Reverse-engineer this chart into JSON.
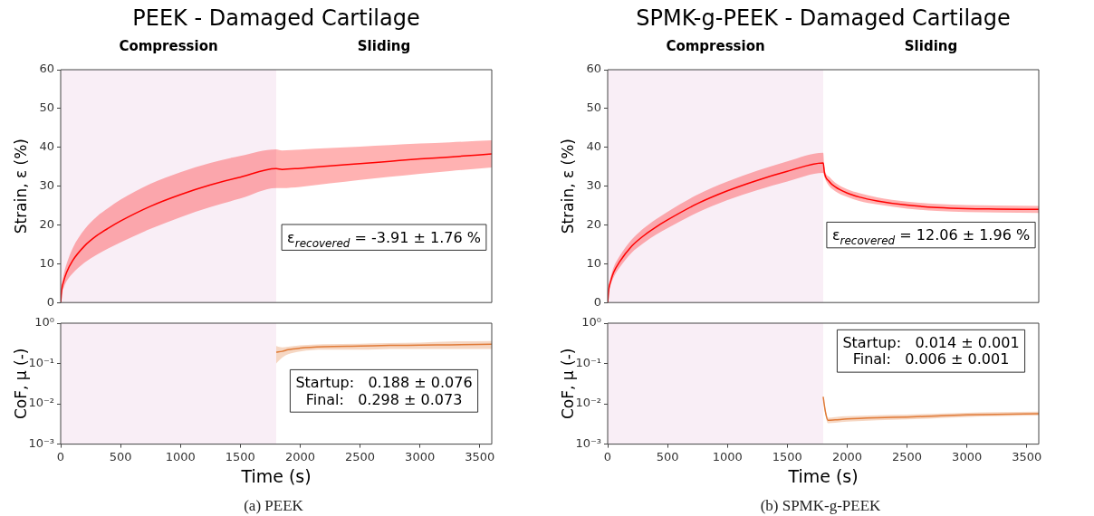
{
  "chart_data": [
    {
      "type": "line",
      "title": "PEEK - Damaged Cartilage",
      "ylabel": "Strain, ε (%)",
      "xlim": [
        0,
        3600
      ],
      "ylim": [
        0,
        60
      ],
      "yticks": [
        0,
        10,
        20,
        30,
        40,
        50,
        60
      ],
      "tick_labels": "y",
      "grid": false,
      "bands": [
        {
          "axis": "x",
          "from": 0,
          "to": 1800,
          "label": "Compression",
          "color": "#f9eef6"
        }
      ],
      "annotations": [
        "Sliding",
        "ε$_{recovered}$ = -3.91 ± 1.76 %"
      ],
      "series": [
        {
          "color": "#ff0000",
          "x": [
            0,
            10,
            25,
            50,
            100,
            200,
            300,
            400,
            500,
            750,
            1000,
            1250,
            1500,
            1800,
            1850,
            2000,
            2250,
            2500,
            2750,
            3000,
            3250,
            3600
          ],
          "values": [
            0,
            3.5,
            5.5,
            7.8,
            10.8,
            14.6,
            17.2,
            19.2,
            21,
            24.8,
            27.8,
            30.3,
            32.3,
            34.5,
            34.3,
            34.6,
            35.2,
            35.8,
            36.4,
            37,
            37.5,
            38.3
          ],
          "lower": [
            0,
            2.5,
            3.8,
            5.5,
            7.5,
            10.3,
            12.3,
            14,
            15.5,
            19,
            22,
            24.6,
            26.8,
            29.5,
            29.5,
            29.8,
            30.7,
            31.6,
            32.4,
            33.2,
            33.9,
            34.8
          ],
          "upper": [
            0,
            4.5,
            7.2,
            10,
            14,
            18.9,
            22.1,
            24.4,
            26.5,
            30.6,
            33.6,
            36,
            37.8,
            39.5,
            39.2,
            39.4,
            39.8,
            40.2,
            40.6,
            41,
            41.3,
            41.8
          ]
        }
      ]
    },
    {
      "type": "line",
      "xlabel": "Time (s)",
      "ylabel": "CoF, μ (-)",
      "log": "y",
      "xlim": [
        0,
        3600
      ],
      "xticks": [
        0,
        500,
        1000,
        1500,
        2000,
        2500,
        3000,
        3500
      ],
      "ylim": [
        0.001,
        1
      ],
      "yticks": [
        {
          "value": 0.001,
          "label": "10⁻³"
        },
        {
          "value": 0.01,
          "label": "10⁻²"
        },
        {
          "value": 0.1,
          "label": "10⁻¹"
        },
        {
          "value": 1,
          "label": "10⁰"
        }
      ],
      "grid": false,
      "bands": [
        {
          "axis": "x",
          "from": 0,
          "to": 1800,
          "color": "#f9eef6"
        }
      ],
      "annotations": [
        "Startup:   0.188 ± 0.076\nFinal:   0.298 ± 0.073",
        "(a) PEEK"
      ],
      "series": [
        {
          "color": "#e07b39",
          "x": [
            1800,
            1850,
            1900,
            2000,
            2200,
            2500,
            2750,
            3000,
            3250,
            3600
          ],
          "values": [
            0.19,
            0.2,
            0.22,
            0.24,
            0.26,
            0.27,
            0.28,
            0.285,
            0.29,
            0.3
          ],
          "lower": [
            0.1,
            0.14,
            0.17,
            0.2,
            0.22,
            0.22,
            0.23,
            0.23,
            0.23,
            0.23
          ],
          "upper": [
            0.27,
            0.25,
            0.26,
            0.28,
            0.3,
            0.31,
            0.32,
            0.33,
            0.35,
            0.36
          ]
        }
      ]
    },
    {
      "type": "line",
      "title": "SPMK-g-PEEK - Damaged Cartilage",
      "ylabel": "Strain, ε (%)",
      "xlim": [
        0,
        3600
      ],
      "ylim": [
        0,
        60
      ],
      "yticks": [
        0,
        10,
        20,
        30,
        40,
        50,
        60
      ],
      "tick_labels": "y",
      "grid": false,
      "bands": [
        {
          "axis": "x",
          "from": 0,
          "to": 1800,
          "label": "Compression",
          "color": "#f9eef6"
        }
      ],
      "annotations": [
        "Sliding",
        "ε$_{recovered}$ = 12.06 ± 1.96 %"
      ],
      "series": [
        {
          "color": "#ff0000",
          "x": [
            0,
            10,
            25,
            50,
            100,
            200,
            300,
            400,
            500,
            750,
            1000,
            1250,
            1500,
            1800,
            1810,
            1850,
            1900,
            2000,
            2100,
            2250,
            2500,
            2750,
            3000,
            3250,
            3600
          ],
          "values": [
            0,
            3.5,
            5.5,
            7.8,
            10.5,
            14.5,
            17.2,
            19.4,
            21.3,
            25.5,
            28.8,
            31.5,
            33.8,
            36,
            33.5,
            31.2,
            29.8,
            28.2,
            27.2,
            26.2,
            25.1,
            24.5,
            24.2,
            24.1,
            24
          ],
          "lower": [
            0,
            2.8,
            4.5,
            6.5,
            9,
            12.8,
            15.3,
            17.4,
            19.2,
            23.2,
            26.4,
            29,
            31.2,
            33.4,
            32.3,
            30,
            28.7,
            27.2,
            26.2,
            25.3,
            24.2,
            23.6,
            23.3,
            23.2,
            23.1
          ],
          "upper": [
            0,
            4.2,
            6.5,
            9.1,
            12,
            16.2,
            19.1,
            21.4,
            23.4,
            27.8,
            31.2,
            34,
            36.4,
            38.6,
            34.7,
            32.4,
            30.9,
            29.2,
            28.2,
            27.1,
            26,
            25.4,
            25.1,
            25,
            24.9
          ]
        }
      ]
    },
    {
      "type": "line",
      "xlabel": "Time (s)",
      "ylabel": "CoF, μ (-)",
      "log": "y",
      "xlim": [
        0,
        3600
      ],
      "xticks": [
        0,
        500,
        1000,
        1500,
        2000,
        2500,
        3000,
        3500
      ],
      "ylim": [
        0.001,
        1
      ],
      "yticks": [
        {
          "value": 0.001,
          "label": "10⁻³"
        },
        {
          "value": 0.01,
          "label": "10⁻²"
        },
        {
          "value": 0.1,
          "label": "10⁻¹"
        },
        {
          "value": 1,
          "label": "10⁰"
        }
      ],
      "grid": false,
      "bands": [
        {
          "axis": "x",
          "from": 0,
          "to": 1800,
          "color": "#f9eef6"
        }
      ],
      "annotations": [
        "Startup:   0.014 ± 0.001\nFinal:   0.006 ± 0.001",
        "(b) SPMK-g-PEEK"
      ],
      "series": [
        {
          "color": "#e07b39",
          "x": [
            1800,
            1810,
            1820,
            1840,
            1900,
            2000,
            2250,
            2500,
            2750,
            3000,
            3250,
            3600
          ],
          "values": [
            0.015,
            0.009,
            0.006,
            0.0039,
            0.004,
            0.0042,
            0.0045,
            0.0047,
            0.005,
            0.0053,
            0.0055,
            0.0057
          ],
          "lower": [
            0.015,
            0.008,
            0.005,
            0.0033,
            0.0034,
            0.0036,
            0.0039,
            0.0041,
            0.0044,
            0.0047,
            0.0049,
            0.0051
          ],
          "upper": [
            0.015,
            0.01,
            0.007,
            0.0045,
            0.0047,
            0.0049,
            0.0052,
            0.0054,
            0.0057,
            0.006,
            0.0062,
            0.0064
          ]
        }
      ]
    }
  ]
}
